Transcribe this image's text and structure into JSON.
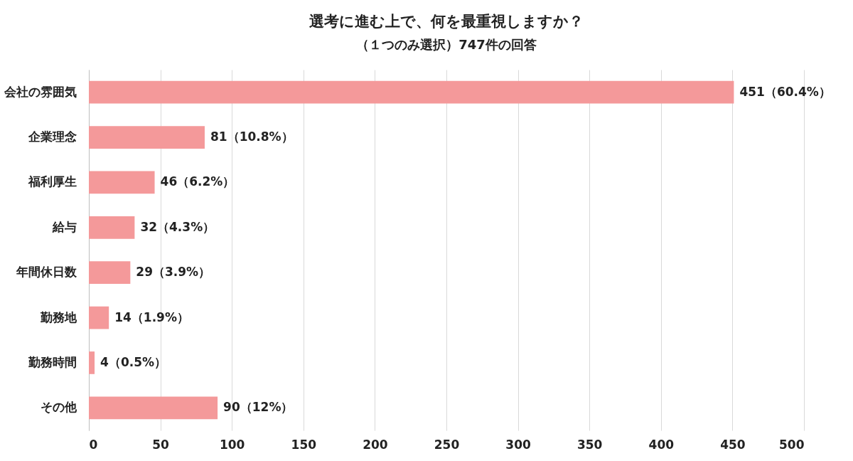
{
  "chart_data": {
    "type": "bar",
    "orientation": "horizontal",
    "title": "選考に進む上で、何を最重視しますか？",
    "subtitle": "（１つのみ選択）747件の回答",
    "categories": [
      "会社の雰囲気",
      "企業理念",
      "福利厚生",
      "給与",
      "年間休日数",
      "勤務地",
      "勤務時間",
      "その他"
    ],
    "values": [
      451,
      81,
      46,
      32,
      29,
      14,
      4,
      90
    ],
    "value_labels": [
      "451（60.4%）",
      "81（10.8%）",
      "46（6.2%）",
      "32（4.3%）",
      "29（3.9%）",
      "14（1.9%）",
      "4（0.5%）",
      "90（12%）"
    ],
    "color": "#f4999a",
    "xlim": [
      0,
      500
    ],
    "xticks": [
      0,
      50,
      100,
      150,
      200,
      250,
      300,
      350,
      400,
      450,
      500
    ],
    "grid": "x"
  }
}
